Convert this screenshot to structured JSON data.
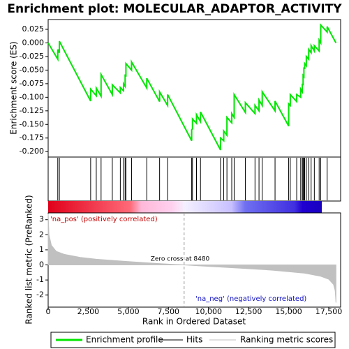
{
  "chart_data": [
    {
      "type": "line",
      "title": "Enrichment plot: MOLECULAR_ADAPTOR_ACTIVITY",
      "ylabel": "Enrichment score (ES)",
      "x": [
        0,
        600,
        600,
        700,
        700,
        2650,
        2650,
        3000,
        3000,
        3300,
        3300,
        4000,
        4000,
        4500,
        4500,
        4700,
        4700,
        4800,
        4800,
        4850,
        4850,
        5200,
        5200,
        6150,
        6150,
        6950,
        6950,
        7450,
        7450,
        8950,
        8950,
        9000,
        9000,
        9250,
        9250,
        9500,
        9500,
        10750,
        10750,
        10950,
        10950,
        11150,
        11150,
        11450,
        11450,
        11600,
        11600,
        12300,
        12300,
        12900,
        12900,
        13150,
        13150,
        13350,
        13350,
        14150,
        14150,
        15000,
        15000,
        15100,
        15100,
        15500,
        15500,
        15750,
        15750,
        15850,
        15850,
        15900,
        15900,
        15950,
        15950,
        16000,
        16000,
        16100,
        16100,
        16250,
        16250,
        16400,
        16400,
        16600,
        16600,
        16900,
        16900,
        17000,
        17000,
        17400,
        17400,
        17950
      ],
      "series": [
        {
          "name": "Enrichment profile",
          "color": "#00e600",
          "values": [
            0,
            -0.03,
            -0.012,
            -0.018,
            0.003,
            -0.107,
            -0.085,
            -0.097,
            -0.083,
            -0.098,
            -0.058,
            -0.095,
            -0.077,
            -0.092,
            -0.082,
            -0.088,
            -0.075,
            -0.08,
            -0.058,
            -0.062,
            -0.038,
            -0.05,
            -0.035,
            -0.083,
            -0.065,
            -0.108,
            -0.09,
            -0.115,
            -0.095,
            -0.18,
            -0.16,
            -0.158,
            -0.14,
            -0.148,
            -0.132,
            -0.145,
            -0.127,
            -0.197,
            -0.175,
            -0.18,
            -0.162,
            -0.17,
            -0.137,
            -0.147,
            -0.13,
            -0.137,
            -0.095,
            -0.128,
            -0.11,
            -0.13,
            -0.115,
            -0.125,
            -0.105,
            -0.115,
            -0.09,
            -0.125,
            -0.107,
            -0.153,
            -0.112,
            -0.115,
            -0.095,
            -0.108,
            -0.095,
            -0.1,
            -0.085,
            -0.09,
            -0.075,
            -0.078,
            -0.06,
            -0.062,
            -0.045,
            -0.048,
            -0.038,
            -0.042,
            -0.025,
            -0.03,
            -0.012,
            -0.018,
            -0.005,
            -0.015,
            -0.005,
            -0.015,
            0.005,
            0.0,
            0.033,
            0.02,
            0.03,
            0.0
          ]
        }
      ],
      "xlim": [
        0,
        18240
      ],
      "ylim": [
        -0.21,
        0.043
      ],
      "yticks": [
        {
          "value": 0.025,
          "label": "0.025"
        },
        {
          "value": 0,
          "label": "0.000"
        },
        {
          "value": -0.025,
          "label": "-0.025"
        },
        {
          "value": -0.05,
          "label": "-0.050"
        },
        {
          "value": -0.075,
          "label": "-0.075"
        },
        {
          "value": -0.1,
          "label": "-0.100"
        },
        {
          "value": -0.125,
          "label": "-0.125"
        },
        {
          "value": -0.15,
          "label": "-0.150"
        },
        {
          "value": -0.175,
          "label": "-0.175"
        },
        {
          "value": -0.2,
          "label": "-0.200"
        }
      ]
    },
    {
      "type": "hits",
      "name": "Hits",
      "color": "#000000",
      "xlim": [
        0,
        18240
      ],
      "x": [
        600,
        700,
        2650,
        3000,
        3300,
        4000,
        4500,
        4700,
        4800,
        4850,
        5200,
        6150,
        6950,
        7450,
        8950,
        9000,
        9250,
        9500,
        10750,
        10950,
        11150,
        11450,
        11600,
        12300,
        12900,
        13150,
        13350,
        14150,
        15000,
        15100,
        15500,
        15750,
        15850,
        15900,
        15950,
        16000,
        16100,
        16250,
        16400,
        16600,
        16900,
        17000,
        17400
      ]
    },
    {
      "type": "area",
      "xlabel": "Rank in Ordered Dataset",
      "ylabel": "Ranked list metric (PreRanked)",
      "x": [
        0,
        50,
        200,
        500,
        1000,
        2000,
        3000,
        5000,
        7000,
        8480,
        10000,
        12000,
        14000,
        15000,
        16000,
        17000,
        17500,
        17800,
        17900,
        17950
      ],
      "series": [
        {
          "name": "Ranking metric scores",
          "color": "#c0c0c0",
          "values": [
            3.4,
            2.0,
            1.3,
            0.9,
            0.7,
            0.5,
            0.38,
            0.22,
            0.08,
            0,
            -0.1,
            -0.22,
            -0.35,
            -0.45,
            -0.55,
            -0.75,
            -0.95,
            -1.3,
            -1.7,
            -2.5
          ]
        }
      ],
      "xlim": [
        0,
        18240
      ],
      "ylim": [
        -2.8,
        3.45
      ],
      "xticks": [
        0,
        {
          "value": 2500,
          "label": "2,500"
        },
        {
          "value": 5000,
          "label": "5,000"
        },
        {
          "value": 7500,
          "label": "7,500"
        },
        {
          "value": 10000,
          "label": "10,000"
        },
        {
          "value": 12500,
          "label": "12,500"
        },
        {
          "value": 15000,
          "label": "15,000"
        },
        {
          "value": 17500,
          "label": "17,500"
        }
      ],
      "yticks": [
        -2,
        -1,
        0,
        1,
        2,
        3
      ],
      "zero_cross": 8480,
      "annotations": [
        "'na_pos' (positively correlated)",
        "Zero cross at 8480",
        "'na_neg' (negatively correlated)"
      ]
    }
  ]
}
